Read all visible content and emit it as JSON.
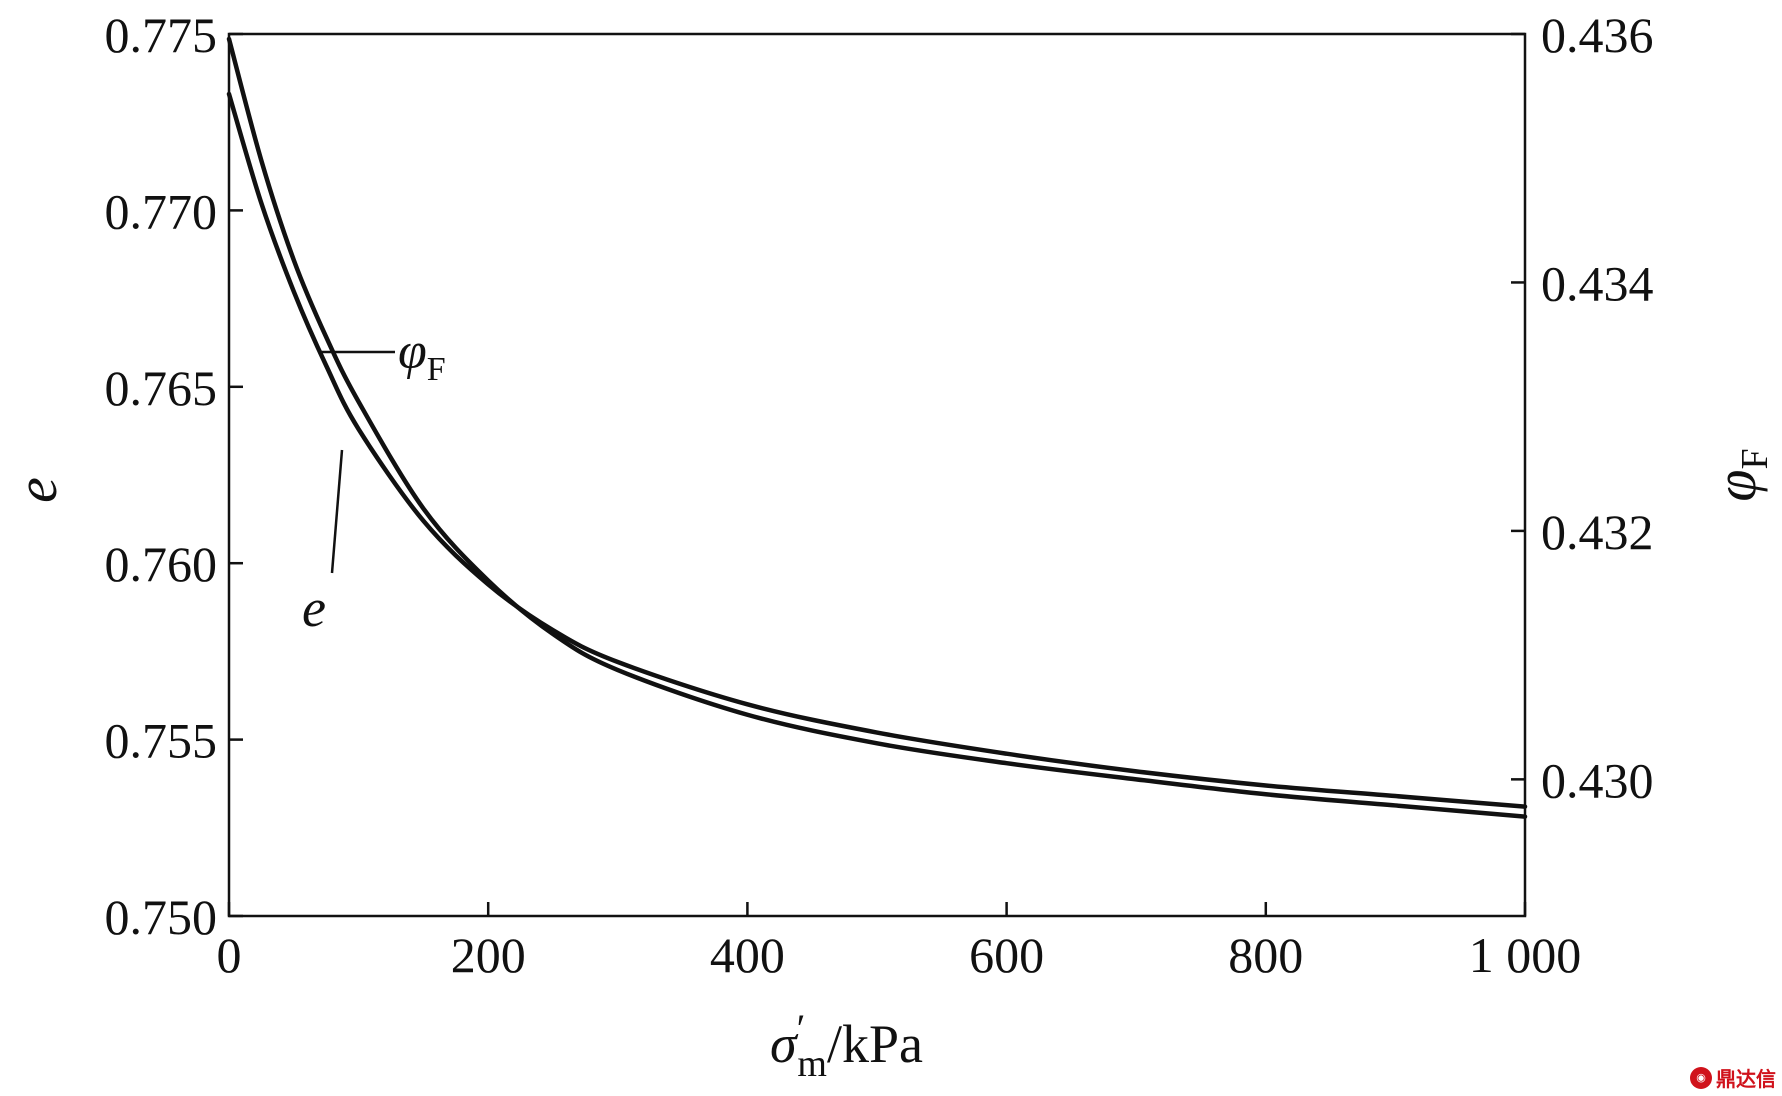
{
  "chart_data": {
    "type": "line",
    "title": "",
    "xlabel": {
      "symbol": "σ",
      "prime": "′",
      "subscript": "m",
      "unit": "/kPa"
    },
    "ylabel_left": "e",
    "ylabel_right": {
      "symbol": "φ",
      "subscript": "F"
    },
    "xlim": [
      0,
      1000
    ],
    "ylim_left": [
      0.75,
      0.775
    ],
    "ylim_right": [
      0.4289,
      0.436
    ],
    "x_ticks": [
      "0",
      "200",
      "400",
      "600",
      "800",
      "1 000"
    ],
    "x_tick_values": [
      0,
      200,
      400,
      600,
      800,
      1000
    ],
    "y_left_ticks": [
      "0.750",
      "0.755",
      "0.760",
      "0.765",
      "0.770",
      "0.775"
    ],
    "y_left_tick_values": [
      0.75,
      0.755,
      0.76,
      0.765,
      0.77,
      0.775
    ],
    "y_right_ticks": [
      "0.430",
      "0.432",
      "0.434",
      "0.436"
    ],
    "y_right_tick_values": [
      0.43,
      0.432,
      0.434,
      0.436
    ],
    "grid": false,
    "series": [
      {
        "name": "φF",
        "axis": "right",
        "x": [
          0,
          25,
          50,
          75,
          100,
          150,
          200,
          250,
          300,
          400,
          500,
          600,
          700,
          800,
          900,
          1000
        ],
        "y": [
          0.43596,
          0.43498,
          0.43418,
          0.43356,
          0.43304,
          0.43218,
          0.4316,
          0.43117,
          0.43088,
          0.43052,
          0.43029,
          0.43013,
          0.43,
          0.42988,
          0.42979,
          0.4297
        ]
      },
      {
        "name": "e",
        "axis": "left",
        "x": [
          0,
          25,
          50,
          75,
          100,
          150,
          200,
          250,
          300,
          400,
          500,
          600,
          700,
          800,
          900,
          1000
        ],
        "y": [
          0.7733,
          0.7702,
          0.7677,
          0.7656,
          0.7638,
          0.7612,
          0.7594,
          0.7581,
          0.7572,
          0.756,
          0.7552,
          0.7546,
          0.7541,
          0.7537,
          0.7534,
          0.7531
        ]
      }
    ],
    "annotations": [
      {
        "symbol": "φ",
        "subscript": "F",
        "series": "φF"
      },
      {
        "text": "e",
        "series": "e"
      }
    ]
  },
  "watermark": {
    "text": "鼎达信"
  }
}
